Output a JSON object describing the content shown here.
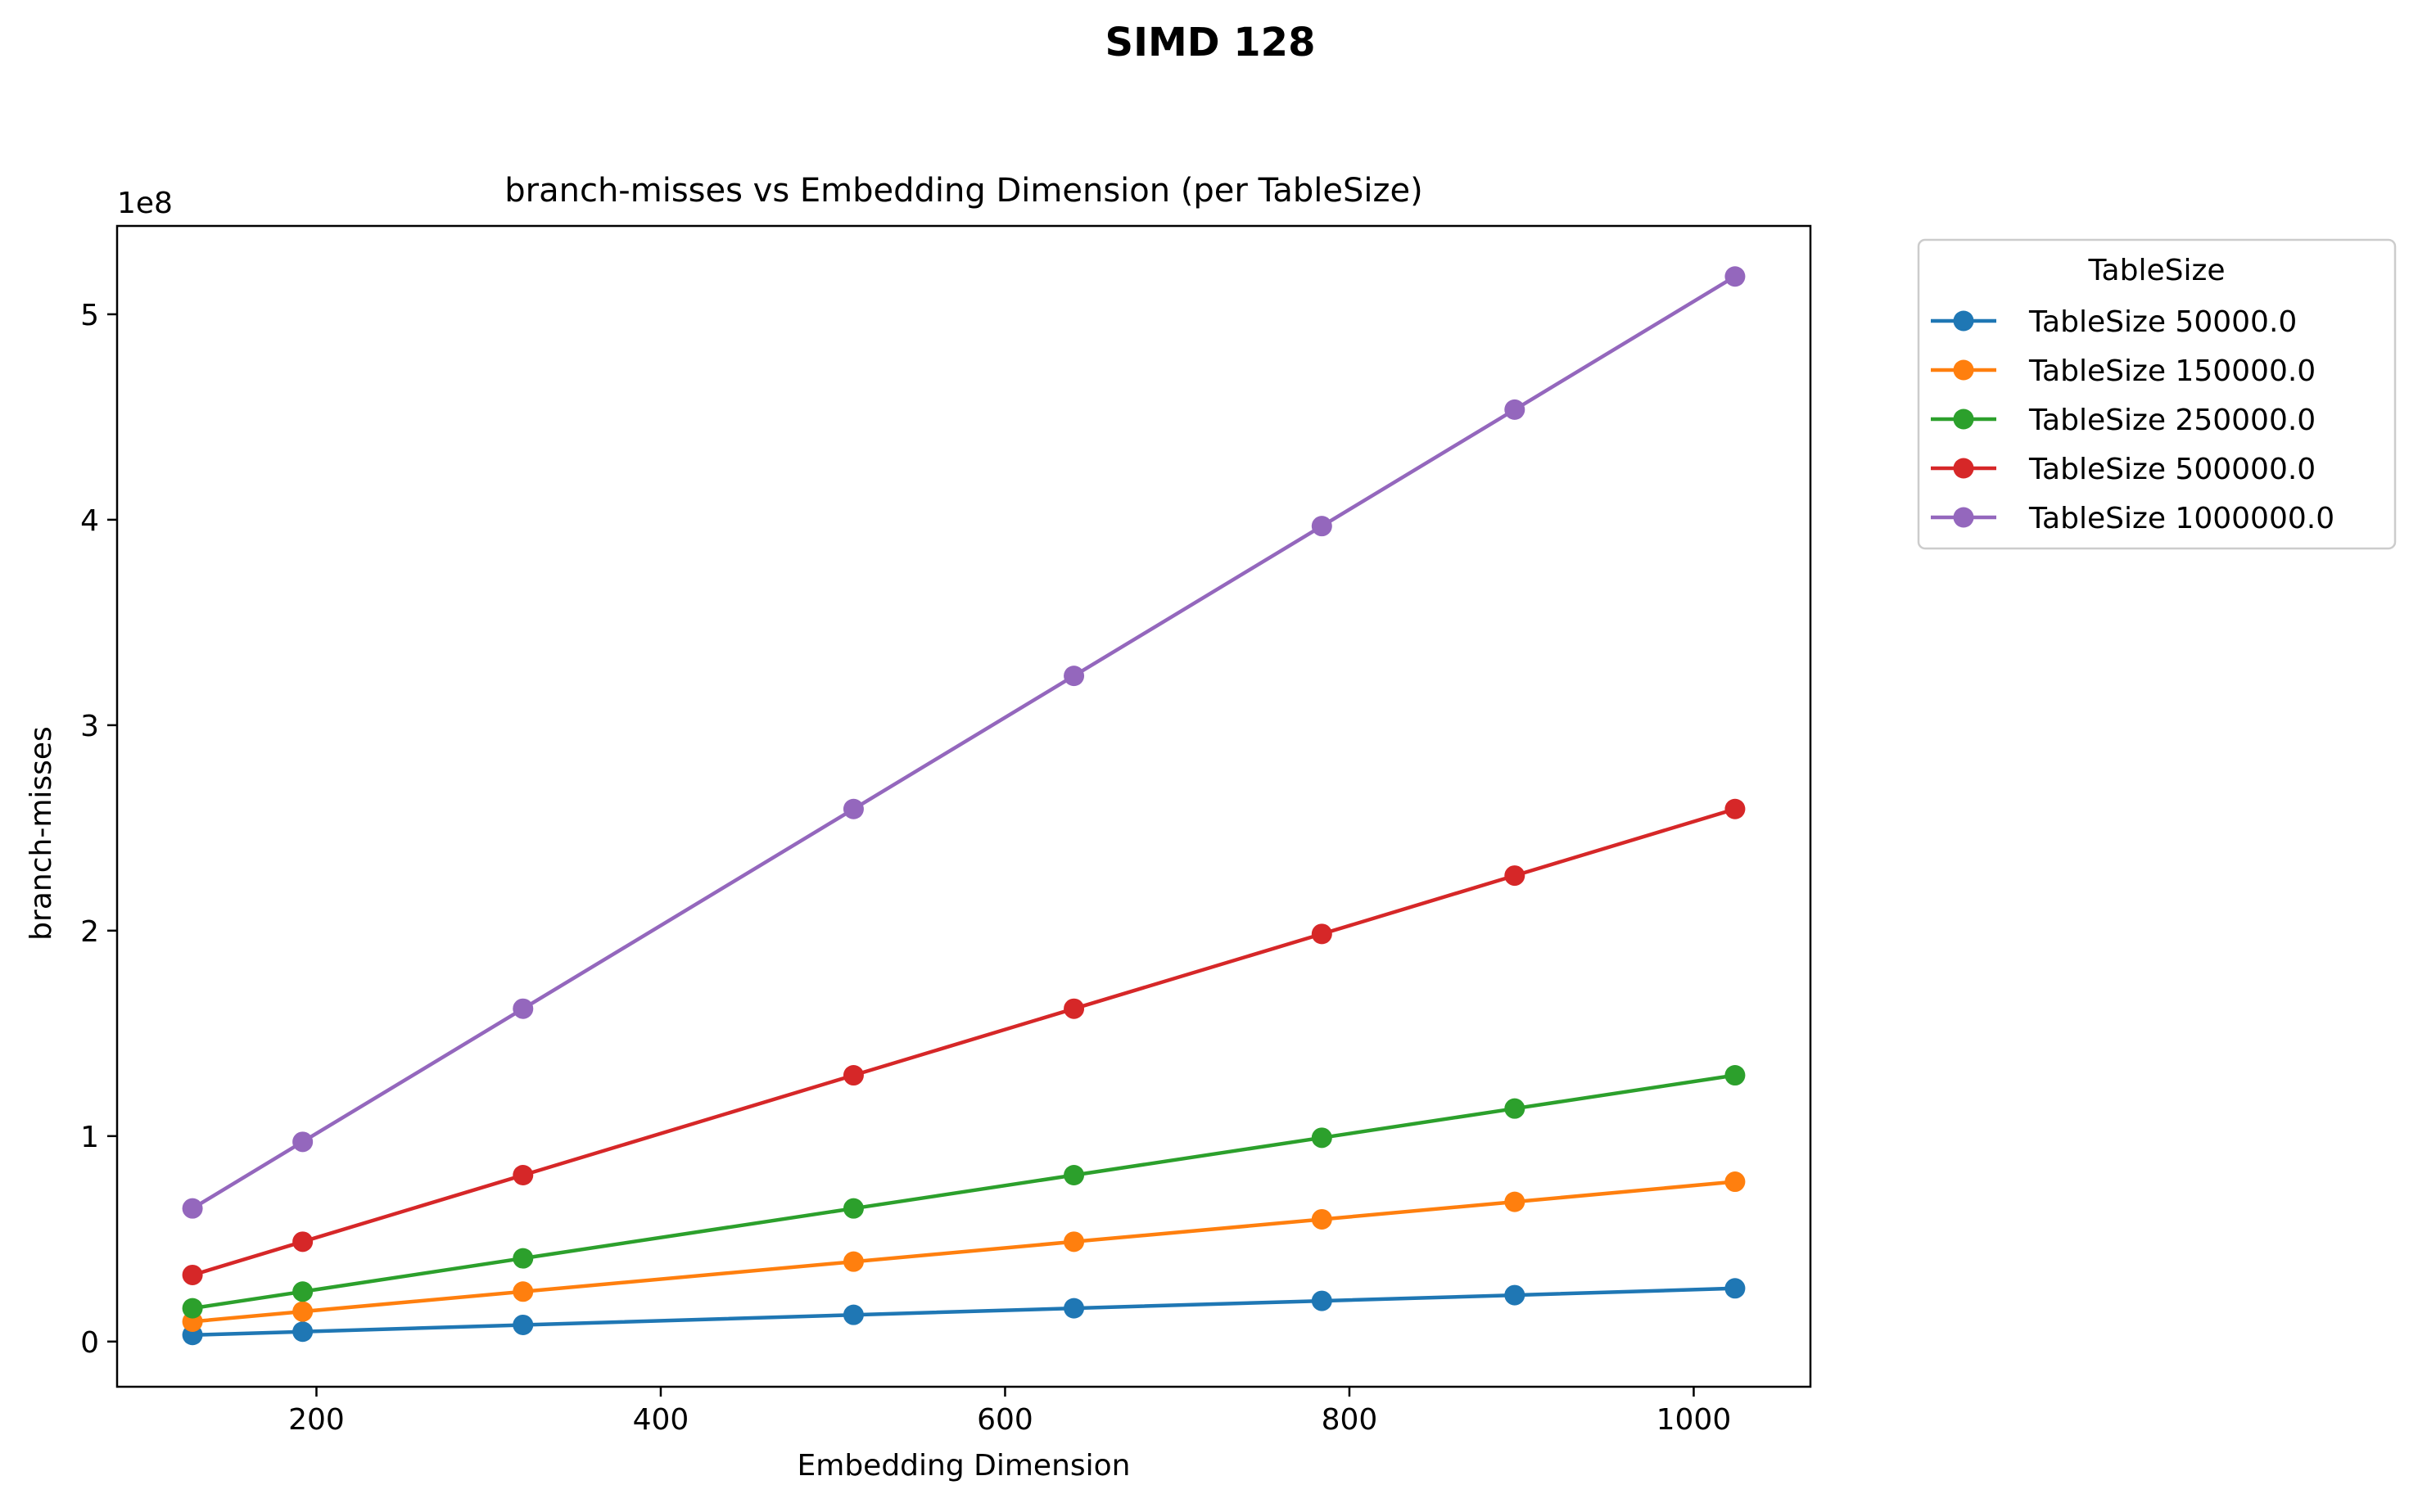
{
  "figure": {
    "suptitle": "SIMD 128"
  },
  "chart_data": {
    "type": "line",
    "title": "branch-misses vs Embedding Dimension (per TableSize)",
    "xlabel": "Embedding Dimension",
    "ylabel": "branch-misses",
    "offset_label": "1e8",
    "y_scale": 100000000,
    "xlim": [
      84.2,
      1067.8
    ],
    "ylim": [
      -0.22,
      5.43
    ],
    "xticks": [
      200,
      400,
      600,
      800,
      1000
    ],
    "yticks": [
      0,
      1,
      2,
      3,
      4,
      5
    ],
    "grid": false,
    "legend": {
      "title": "TableSize",
      "placement": "outside-upper-right"
    },
    "x": [
      128,
      192,
      320,
      512,
      640,
      784,
      896,
      1024
    ],
    "series": [
      {
        "name": "TableSize 50000.0",
        "color": "#1f77b4",
        "values": [
          0.032,
          0.048,
          0.081,
          0.13,
          0.162,
          0.198,
          0.226,
          0.259
        ]
      },
      {
        "name": "TableSize 150000.0",
        "color": "#ff7f0e",
        "values": [
          0.097,
          0.146,
          0.243,
          0.389,
          0.486,
          0.595,
          0.68,
          0.778
        ]
      },
      {
        "name": "TableSize 250000.0",
        "color": "#2ca02c",
        "values": [
          0.162,
          0.243,
          0.405,
          0.648,
          0.81,
          0.992,
          1.134,
          1.296
        ]
      },
      {
        "name": "TableSize 500000.0",
        "color": "#d62728",
        "values": [
          0.324,
          0.486,
          0.81,
          1.296,
          1.62,
          1.984,
          2.268,
          2.592
        ]
      },
      {
        "name": "TableSize 1000000.0",
        "color": "#9467bd",
        "values": [
          0.648,
          0.972,
          1.62,
          2.592,
          3.24,
          3.969,
          4.536,
          5.184
        ]
      }
    ]
  }
}
